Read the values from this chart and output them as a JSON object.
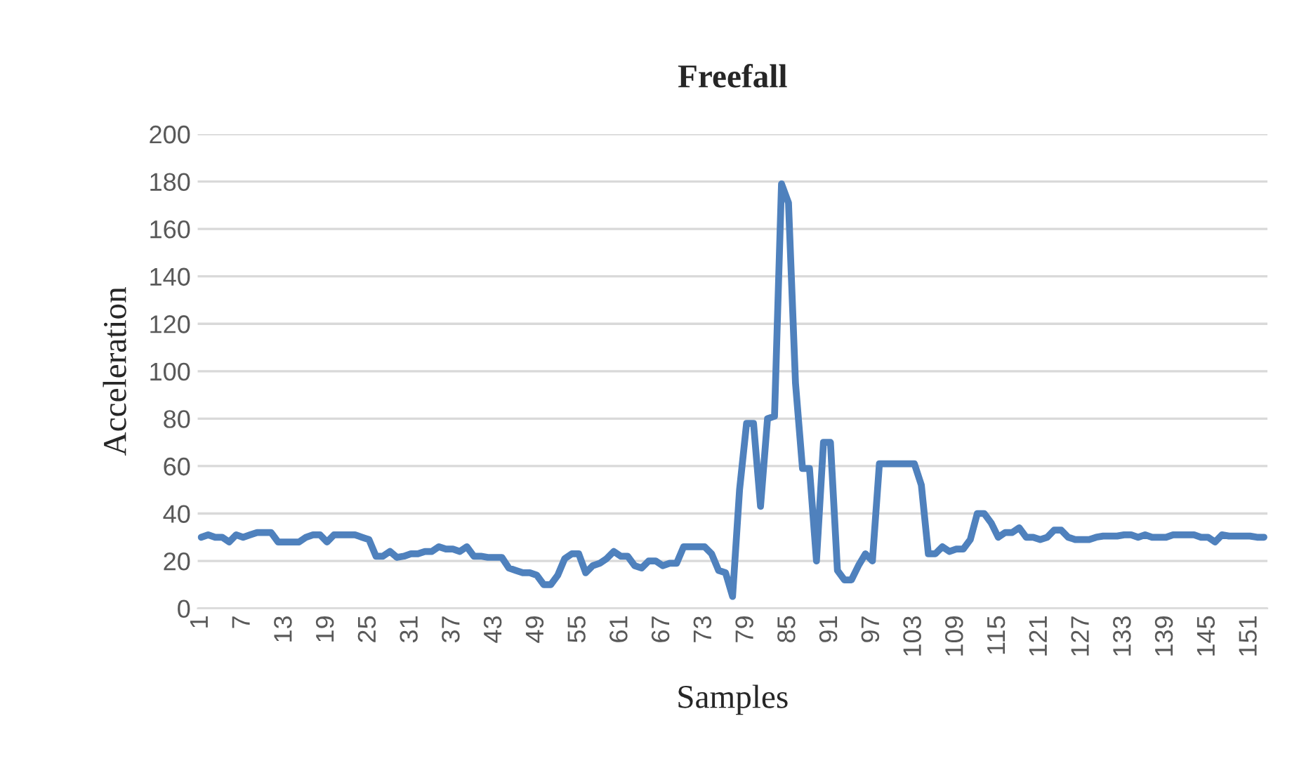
{
  "chart_data": {
    "type": "line",
    "title": "Freefall",
    "xlabel": "Samples",
    "ylabel": "Acceleration",
    "categories": [
      "1",
      null,
      null,
      null,
      null,
      null,
      "7",
      null,
      null,
      null,
      null,
      null,
      "13",
      null,
      null,
      null,
      null,
      null,
      "19",
      null,
      null,
      null,
      null,
      null,
      "25",
      null,
      null,
      null,
      null,
      null,
      "31",
      null,
      null,
      null,
      null,
      null,
      "37",
      null,
      null,
      null,
      null,
      null,
      "43",
      null,
      null,
      null,
      null,
      null,
      "49",
      null,
      null,
      null,
      null,
      null,
      "55",
      null,
      null,
      null,
      null,
      null,
      "61",
      null,
      null,
      null,
      null,
      null,
      "67",
      null,
      null,
      null,
      null,
      null,
      "73",
      null,
      null,
      null,
      null,
      null,
      "79",
      null,
      null,
      null,
      null,
      null,
      "85",
      null,
      null,
      null,
      null,
      null,
      "91",
      null,
      null,
      null,
      null,
      null,
      "97",
      null,
      null,
      null,
      null,
      null,
      "103",
      null,
      null,
      null,
      null,
      null,
      "109",
      null,
      null,
      null,
      null,
      null,
      "115",
      null,
      null,
      null,
      null,
      null,
      "121",
      null,
      null,
      null,
      null,
      null,
      "127",
      null,
      null,
      null,
      null,
      null,
      "133",
      null,
      null,
      null,
      null,
      null,
      "139",
      null,
      null,
      null,
      null,
      null,
      "145",
      null,
      null,
      null,
      null,
      null,
      "151",
      null,
      null
    ],
    "series": [
      {
        "color": "#4f81bd",
        "values": [
          30,
          31,
          30,
          30,
          28,
          31,
          30,
          31,
          32,
          32,
          32,
          28,
          28,
          28,
          28,
          30,
          31,
          31,
          28,
          31,
          31,
          31,
          31,
          30,
          29,
          22,
          22,
          24,
          21.5,
          22,
          23,
          23,
          24,
          24,
          26,
          25,
          25,
          24,
          26,
          22,
          22,
          21.5,
          21.5,
          21.5,
          17,
          16,
          15,
          15,
          14,
          10,
          10,
          14,
          21,
          23,
          23,
          15,
          18,
          19,
          21,
          24,
          22,
          22,
          18,
          17,
          20,
          20,
          18,
          19,
          19,
          26,
          26,
          26,
          26,
          23,
          16,
          15,
          5,
          50,
          78,
          78,
          43,
          80,
          81,
          179,
          171,
          95,
          59,
          59,
          20,
          70,
          70,
          16,
          12,
          12,
          18,
          23,
          20,
          61,
          61,
          61,
          61,
          61,
          61,
          52,
          23,
          23,
          26,
          24,
          25,
          25,
          29,
          40,
          40,
          36,
          30,
          32,
          32,
          34,
          30,
          30,
          29,
          30,
          33,
          33,
          30,
          29,
          29,
          29,
          30,
          30.5,
          30.5,
          30.5,
          31,
          31,
          30,
          31,
          30,
          30,
          30,
          31,
          31,
          31,
          31,
          30,
          30,
          28,
          31,
          30.5,
          30.5,
          30.5,
          30.5,
          30,
          30
        ]
      }
    ],
    "ylim": [
      0,
      200
    ],
    "yticks": [
      0,
      20,
      40,
      60,
      80,
      100,
      120,
      140,
      160,
      180,
      200
    ],
    "grid": "y"
  }
}
